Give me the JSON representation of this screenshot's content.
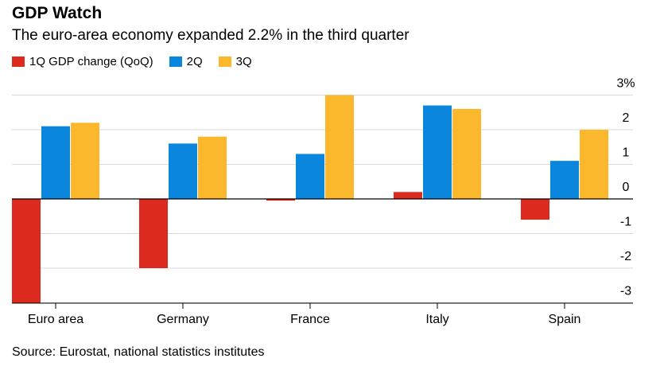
{
  "title": "GDP Watch",
  "subtitle": "The euro-area economy expanded 2.2% in the third quarter",
  "source": "Source: Eurostat, national statistics institutes",
  "colors": {
    "q1": "#dc2a1f",
    "q2": "#0a87dc",
    "q3": "#fbb82d",
    "grid": "#d9d9d9",
    "zero": "#000000"
  },
  "chart_data": {
    "type": "bar",
    "categories": [
      "Euro area",
      "Germany",
      "France",
      "Italy",
      "Spain"
    ],
    "series": [
      {
        "name": "1Q GDP change (QoQ)",
        "values": [
          -3.0,
          -2.0,
          -0.05,
          0.2,
          -0.6
        ]
      },
      {
        "name": "2Q",
        "values": [
          2.1,
          1.6,
          1.3,
          2.7,
          1.1
        ]
      },
      {
        "name": "3Q",
        "values": [
          2.2,
          1.8,
          3.0,
          2.6,
          2.0
        ]
      }
    ],
    "ylim": [
      -3,
      3
    ],
    "yticks": [
      3,
      2,
      1,
      0,
      -1,
      -2,
      -3
    ],
    "ytick_labels": [
      "3%",
      "2",
      "1",
      "0",
      "-1",
      "-2",
      "-3"
    ],
    "grid": true,
    "legend_position": "top-left",
    "y_axis_side": "right"
  }
}
